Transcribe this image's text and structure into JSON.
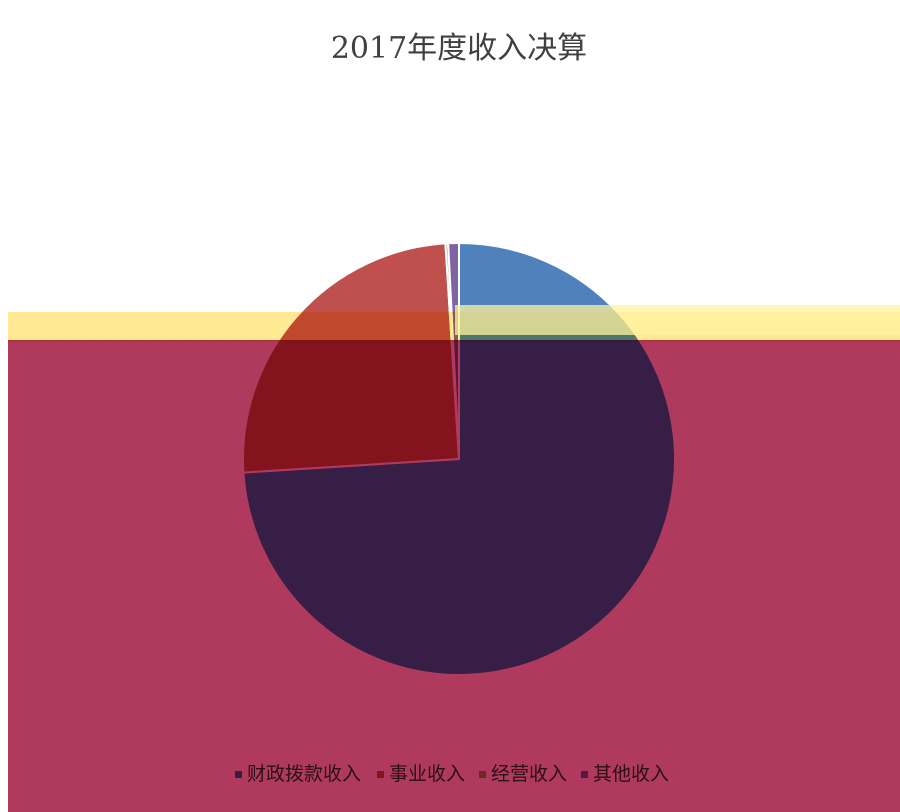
{
  "chart_data": {
    "type": "pie",
    "title": "2017年度收入决算",
    "categories": [
      "财政拨款收入",
      "事业收入",
      "经营收入",
      "其他收入"
    ],
    "values": [
      74,
      25,
      0.2,
      0.8
    ],
    "colors": [
      "#4f81bd",
      "#c0504d",
      "#9bbb59",
      "#8064a2"
    ],
    "legend": "bottom"
  }
}
